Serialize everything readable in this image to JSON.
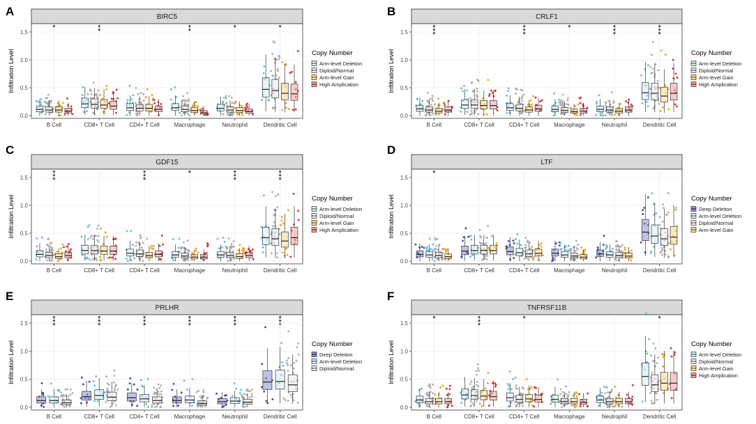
{
  "figure": {
    "legend_title": "Copy Number",
    "y_label": "Infiltration Level",
    "y_ticks": [
      "0.0",
      "0.5",
      "1.0",
      "1.5"
    ],
    "cell_types": [
      "B Cell",
      "CD8+ T Cell",
      "CD4+ T Cell",
      "Macrophage",
      "Neutrophil",
      "Dendritic Cell"
    ],
    "group_colors": {
      "Deep Deletion": "#2b3a9a",
      "Arm-level Deletion": "#4db8d8",
      "Diploid/Normal": "#a6a6a6",
      "Arm-level Gain": "#ee9a00",
      "High Amplication": "#d7191c"
    },
    "box_fills": {
      "Deep Deletion": "#8a8fd0",
      "Arm-level Deletion": "#d2ecf4",
      "Diploid/Normal": "#e9e9e9",
      "Arm-level Gain": "#f9d98c",
      "High Amplication": "#f2a3a3"
    }
  },
  "chart_data": [
    {
      "type": "box",
      "panel": "A",
      "title": "BIRC5",
      "ylabel": "Infiltration Level",
      "ylim": [
        0,
        1.6
      ],
      "categories": [
        "B Cell",
        "CD8+ T Cell",
        "CD4+ T Cell",
        "Macrophage",
        "Neutrophil",
        "Dendritic Cell"
      ],
      "groups": [
        "Arm-level Deletion",
        "Diploid/Normal",
        "Arm-level Gain",
        "High Amplication"
      ],
      "significance": [
        "*",
        "*\n*",
        "",
        "*\n*",
        "*",
        "*"
      ],
      "series": [
        {
          "name": "Arm-level Deletion",
          "medians": [
            0.11,
            0.21,
            0.14,
            0.14,
            0.13,
            0.47
          ]
        },
        {
          "name": "Diploid/Normal",
          "medians": [
            0.1,
            0.2,
            0.13,
            0.11,
            0.1,
            0.45
          ]
        },
        {
          "name": "Arm-level Gain",
          "medians": [
            0.1,
            0.19,
            0.13,
            0.09,
            0.09,
            0.4
          ]
        },
        {
          "name": "High Amplication",
          "medians": [
            0.08,
            0.17,
            0.11,
            0.05,
            0.07,
            0.39
          ]
        }
      ]
    },
    {
      "type": "box",
      "panel": "B",
      "title": "CRLF1",
      "ylabel": "Infiltration Level",
      "ylim": [
        0,
        1.6
      ],
      "categories": [
        "B Cell",
        "CD8+ T Cell",
        "CD4+ T Cell",
        "Macrophage",
        "Neutrophil",
        "Dendritic Cell"
      ],
      "groups": [
        "Arm-level Deletion",
        "Diploid/Normal",
        "Arm-level Gain",
        "High Amplication"
      ],
      "significance": [
        "*\n*\n*",
        "",
        "*\n*\n*",
        "*",
        "*\n*\n*",
        "*\n*\n*"
      ],
      "series": [
        {
          "name": "Arm-level Deletion",
          "medians": [
            0.12,
            0.19,
            0.14,
            0.11,
            0.11,
            0.41
          ]
        },
        {
          "name": "Diploid/Normal",
          "medians": [
            0.1,
            0.19,
            0.13,
            0.09,
            0.1,
            0.4
          ]
        },
        {
          "name": "Arm-level Gain",
          "medians": [
            0.08,
            0.18,
            0.1,
            0.07,
            0.08,
            0.35
          ]
        },
        {
          "name": "High Amplication",
          "medians": [
            0.1,
            0.18,
            0.12,
            0.08,
            0.1,
            0.4
          ]
        }
      ]
    },
    {
      "type": "box",
      "panel": "C",
      "title": "GDF15",
      "ylabel": "Infiltration Level",
      "ylim": [
        0,
        1.6
      ],
      "categories": [
        "B Cell",
        "CD8+ T Cell",
        "CD4+ T Cell",
        "Macrophage",
        "Neutrophil",
        "Dendritic Cell"
      ],
      "groups": [
        "Arm-level Deletion",
        "Diploid/Normal",
        "Arm-level Gain",
        "High Amplication"
      ],
      "significance": [
        "*\n*\n*",
        "",
        "*\n*\n*",
        "*",
        "*\n*\n*",
        "*\n*\n*"
      ],
      "series": [
        {
          "name": "Arm-level Deletion",
          "medians": [
            0.12,
            0.19,
            0.14,
            0.11,
            0.11,
            0.42
          ]
        },
        {
          "name": "Diploid/Normal",
          "medians": [
            0.1,
            0.19,
            0.13,
            0.09,
            0.1,
            0.4
          ]
        },
        {
          "name": "Arm-level Gain",
          "medians": [
            0.08,
            0.18,
            0.1,
            0.07,
            0.08,
            0.36
          ]
        },
        {
          "name": "High Amplication",
          "medians": [
            0.1,
            0.18,
            0.12,
            0.07,
            0.1,
            0.42
          ]
        }
      ]
    },
    {
      "type": "box",
      "panel": "D",
      "title": "LTF",
      "ylabel": "Infiltration Level",
      "ylim": [
        0,
        1.6
      ],
      "categories": [
        "B Cell",
        "CD8+ T Cell",
        "CD4+ T Cell",
        "Macrophage",
        "Neutrophil",
        "Dendritic Cell"
      ],
      "groups": [
        "Deep Deletion",
        "Arm-level Deletion",
        "Diploid/Normal",
        "Arm-level Gain"
      ],
      "significance": [
        "*",
        "",
        "",
        "",
        "",
        ""
      ],
      "series": [
        {
          "name": "Deep Deletion",
          "medians": [
            0.12,
            0.18,
            0.17,
            0.14,
            0.13,
            0.52
          ]
        },
        {
          "name": "Arm-level Deletion",
          "medians": [
            0.11,
            0.19,
            0.15,
            0.11,
            0.11,
            0.45
          ]
        },
        {
          "name": "Diploid/Normal",
          "medians": [
            0.1,
            0.19,
            0.13,
            0.09,
            0.1,
            0.4
          ]
        },
        {
          "name": "Arm-level Gain",
          "medians": [
            0.08,
            0.19,
            0.14,
            0.07,
            0.09,
            0.43
          ]
        }
      ]
    },
    {
      "type": "box",
      "panel": "E",
      "title": "PRLHR",
      "ylabel": "Infiltration Level",
      "ylim": [
        0,
        1.6
      ],
      "categories": [
        "B Cell",
        "CD8+ T Cell",
        "CD4+ T Cell",
        "Macrophage",
        "Neutrophil",
        "Dendritic Cell"
      ],
      "groups": [
        "Deep Deletion",
        "Arm-level Deletion",
        "Diploid/Normal"
      ],
      "significance": [
        "*\n*\n*",
        "*\n*\n*",
        "*\n*\n*",
        "*\n*\n*",
        "*\n*\n*",
        "*\n*\n*"
      ],
      "series": [
        {
          "name": "Deep Deletion",
          "medians": [
            0.12,
            0.19,
            0.17,
            0.12,
            0.1,
            0.45
          ]
        },
        {
          "name": "Arm-level Deletion",
          "medians": [
            0.12,
            0.21,
            0.15,
            0.13,
            0.11,
            0.46
          ]
        },
        {
          "name": "Diploid/Normal",
          "medians": [
            0.08,
            0.18,
            0.12,
            0.07,
            0.09,
            0.4
          ]
        }
      ]
    },
    {
      "type": "box",
      "panel": "F",
      "title": "TNFRSF11B",
      "ylabel": "Infiltration Level",
      "ylim": [
        0,
        1.6
      ],
      "categories": [
        "B Cell",
        "CD8+ T Cell",
        "CD4+ T Cell",
        "Macrophage",
        "Neutrophil",
        "Dendritic Cell"
      ],
      "groups": [
        "Arm-level Deletion",
        "Diploid/Normal",
        "Arm-level Gain",
        "High Amplication"
      ],
      "significance": [
        "*",
        "*\n*\n*",
        "*",
        "",
        "",
        "*"
      ],
      "series": [
        {
          "name": "Arm-level Deletion",
          "medians": [
            0.13,
            0.22,
            0.17,
            0.14,
            0.13,
            0.55
          ]
        },
        {
          "name": "Diploid/Normal",
          "medians": [
            0.1,
            0.21,
            0.14,
            0.1,
            0.1,
            0.4
          ]
        },
        {
          "name": "Arm-level Gain",
          "medians": [
            0.1,
            0.2,
            0.15,
            0.1,
            0.1,
            0.43
          ]
        },
        {
          "name": "High Amplication",
          "medians": [
            0.1,
            0.19,
            0.14,
            0.09,
            0.1,
            0.43
          ]
        }
      ]
    }
  ]
}
